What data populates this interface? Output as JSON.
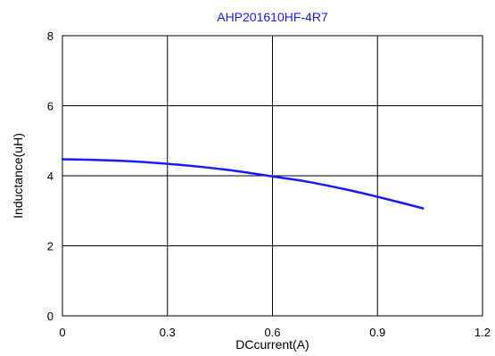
{
  "chart_data": {
    "type": "line",
    "title": "AHP201610HF-4R7",
    "xlabel": "DCcurrent(A)",
    "ylabel": "Inductance(uH)",
    "xlim": [
      0,
      1.2
    ],
    "ylim": [
      0,
      8
    ],
    "x_ticks": [
      "0",
      "0.3",
      "0.6",
      "0.9",
      "1.2"
    ],
    "y_ticks": [
      "0",
      "2",
      "4",
      "6",
      "8"
    ],
    "grid": true,
    "legend": "none",
    "series": [
      {
        "color": "#1a1aff",
        "x": [
          0,
          0.1,
          0.2,
          0.3,
          0.4,
          0.5,
          0.6,
          0.7,
          0.8,
          0.9,
          1.03
        ],
        "y": [
          4.47,
          4.45,
          4.41,
          4.34,
          4.25,
          4.13,
          3.98,
          3.83,
          3.63,
          3.4,
          3.07
        ]
      }
    ]
  }
}
